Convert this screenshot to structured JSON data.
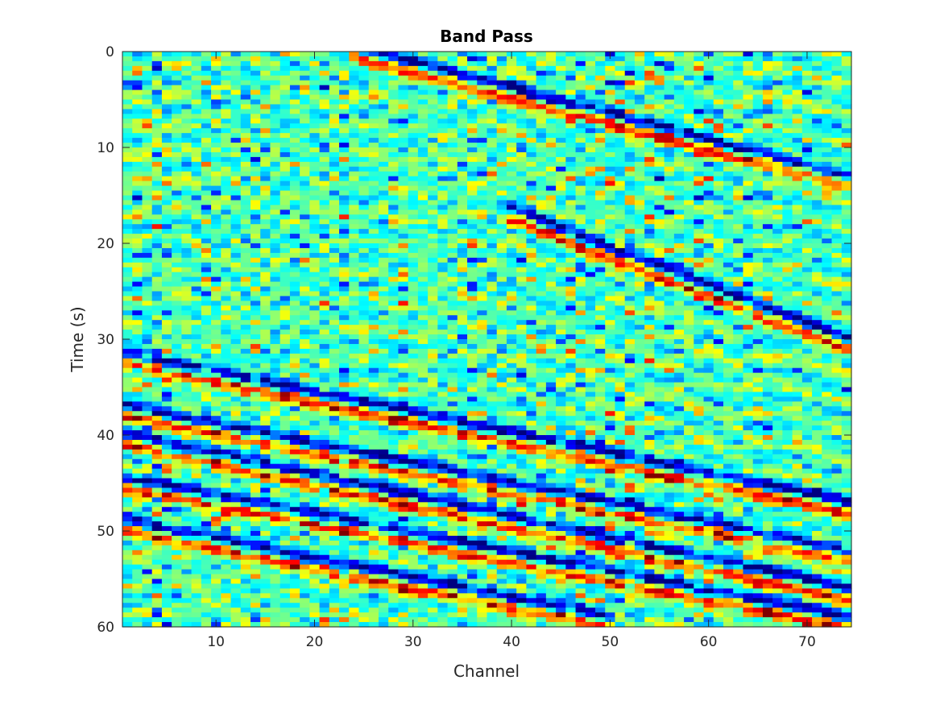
{
  "chart_data": {
    "type": "heatmap",
    "title": "Band Pass",
    "xlabel": "Channel",
    "ylabel": "Time (s)",
    "xlim": [
      0.5,
      74.5
    ],
    "ylim": [
      0,
      60
    ],
    "y_reversed": true,
    "colormap": "jet",
    "x_ticks": [
      10,
      20,
      30,
      40,
      50,
      60,
      70
    ],
    "x_tick_labels": [
      "10",
      "20",
      "30",
      "40",
      "50",
      "60",
      "70"
    ],
    "y_ticks": [
      0,
      10,
      20,
      30,
      40,
      50,
      60
    ],
    "y_tick_labels": [
      "0",
      "10",
      "20",
      "30",
      "40",
      "50",
      "60"
    ],
    "channels": 74,
    "grid": false,
    "colorbar": false,
    "features": [
      {
        "kind": "moveout-band",
        "channel_range": [
          1,
          74
        ],
        "time_at_start": 32.0,
        "time_at_end": 47.5
      },
      {
        "kind": "moveout-band",
        "channel_range": [
          1,
          74
        ],
        "time_at_start": 37.5,
        "time_at_end": 52.5
      },
      {
        "kind": "moveout-band",
        "channel_range": [
          1,
          74
        ],
        "time_at_start": 40.5,
        "time_at_end": 56.5
      },
      {
        "kind": "moveout-band",
        "channel_range": [
          1,
          74
        ],
        "time_at_start": 45.0,
        "time_at_end": 59.5
      },
      {
        "kind": "moveout-band",
        "channel_range": [
          1,
          50
        ],
        "time_at_start": 49.5,
        "time_at_end": 59.5
      },
      {
        "kind": "moveout-band",
        "channel_range": [
          24,
          74
        ],
        "time_at_start": 0.0,
        "time_at_end": 13.5
      },
      {
        "kind": "moveout-band",
        "channel_range": [
          40,
          74
        ],
        "time_at_start": 17.0,
        "time_at_end": 30.5
      }
    ]
  }
}
